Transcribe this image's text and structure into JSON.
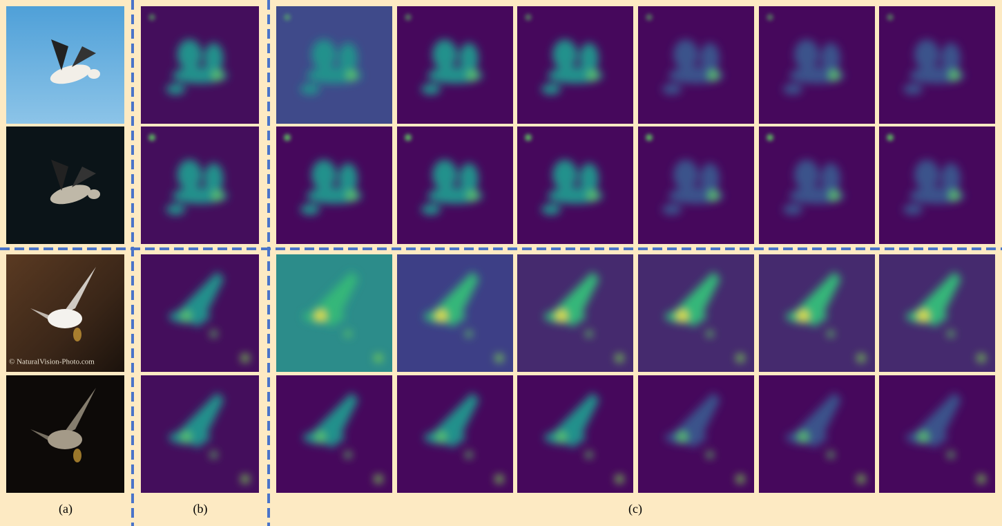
{
  "labels": {
    "a": "(a)",
    "b": "(b)",
    "c": "(c)"
  },
  "watermark": "© NaturalVision-Photo.com"
}
